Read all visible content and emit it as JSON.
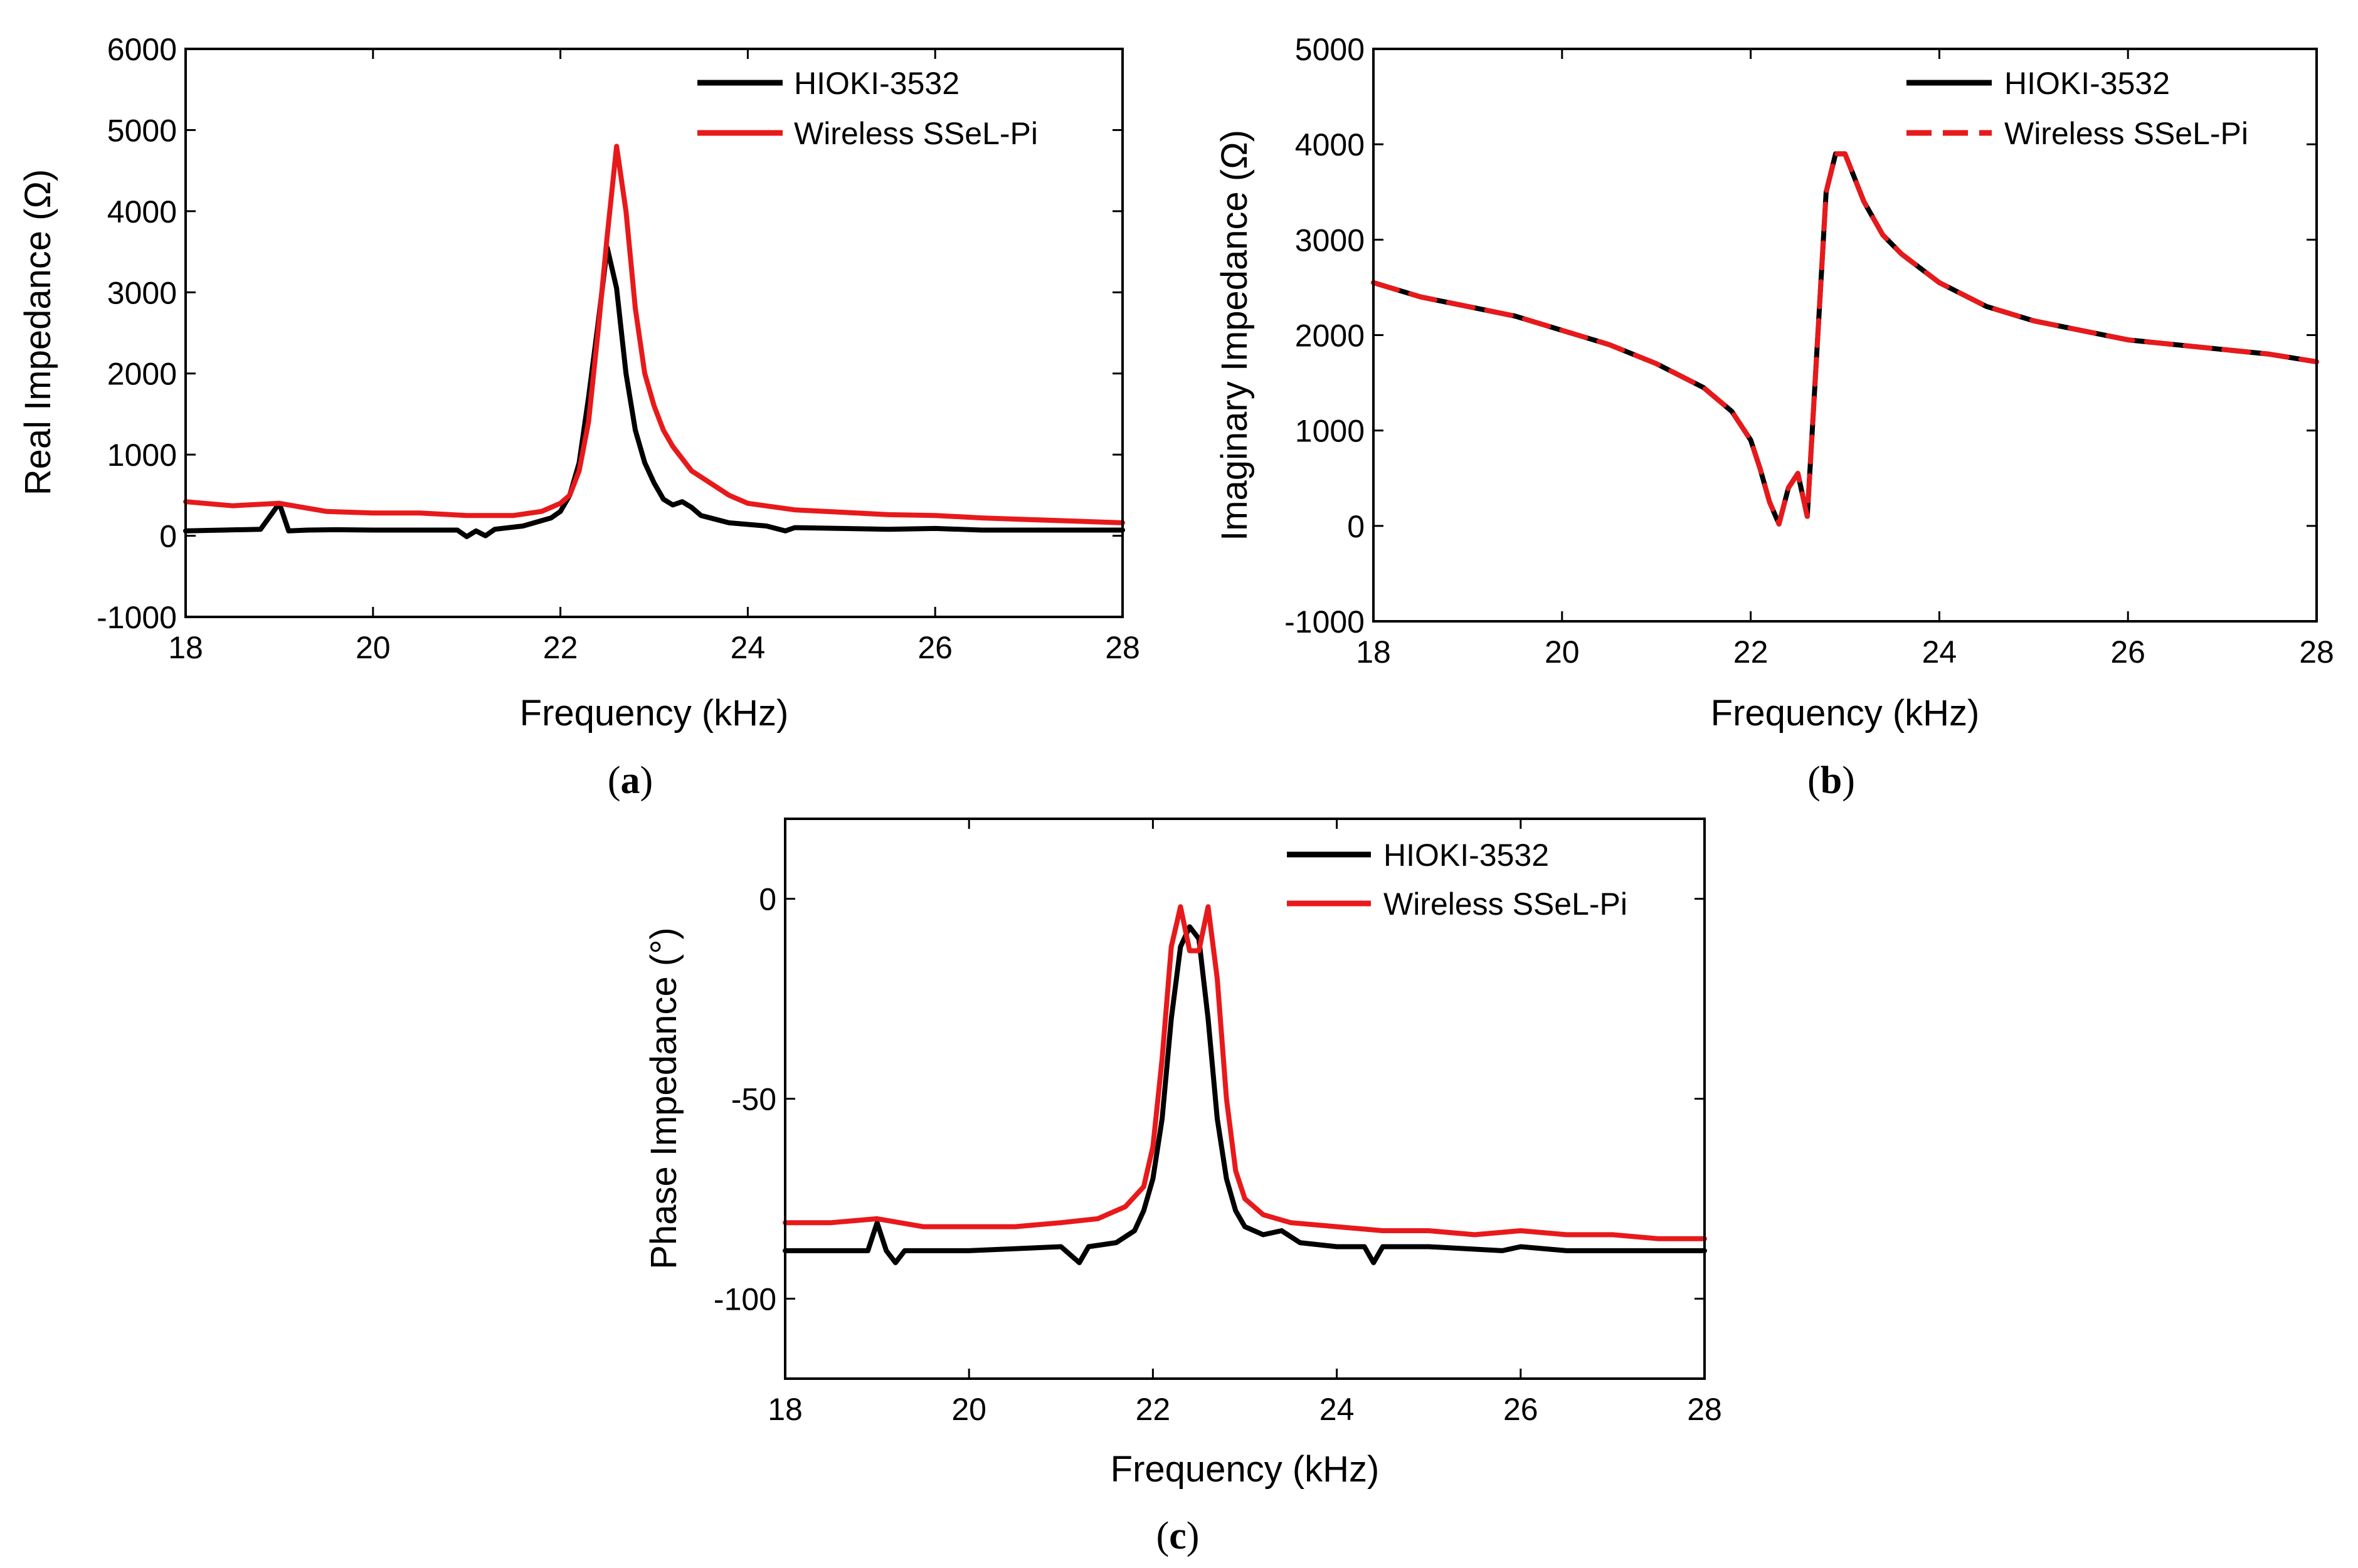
{
  "chart_data": [
    {
      "type": "line",
      "panel_label": "a",
      "xlabel": "Frequency (kHz)",
      "ylabel": "Real Impedance (Ω)",
      "xlim": [
        18,
        28
      ],
      "ylim": [
        -1000,
        6000
      ],
      "xticks": [
        18,
        20,
        22,
        24,
        26,
        28
      ],
      "yticks": [
        -1000,
        0,
        1000,
        2000,
        3000,
        4000,
        5000,
        6000
      ],
      "legend_position": "top-right",
      "series": [
        {
          "name": "HIOKI-3532",
          "color": "#000000",
          "dash": "solid",
          "x": [
            18,
            18.4,
            18.8,
            19.0,
            19.1,
            19.3,
            19.6,
            20.0,
            20.5,
            20.9,
            21.0,
            21.1,
            21.2,
            21.3,
            21.6,
            21.9,
            22.0,
            22.1,
            22.2,
            22.3,
            22.4,
            22.5,
            22.6,
            22.7,
            22.8,
            22.9,
            23.0,
            23.1,
            23.2,
            23.3,
            23.4,
            23.5,
            23.8,
            24.2,
            24.4,
            24.5,
            25.0,
            25.5,
            26.0,
            26.5,
            27.0,
            27.5,
            28.0
          ],
          "y": [
            60,
            70,
            80,
            400,
            60,
            70,
            75,
            70,
            70,
            70,
            -10,
            60,
            0,
            80,
            120,
            220,
            300,
            500,
            900,
            1700,
            2600,
            3550,
            3050,
            2000,
            1300,
            900,
            650,
            450,
            380,
            420,
            350,
            250,
            160,
            120,
            60,
            100,
            90,
            80,
            90,
            70,
            70,
            70,
            70
          ]
        },
        {
          "name": "Wireless SSeL-Pi",
          "color": "#e8191b",
          "dash": "solid",
          "x": [
            18,
            18.5,
            19.0,
            19.5,
            20.0,
            20.5,
            21.0,
            21.5,
            21.8,
            22.0,
            22.1,
            22.2,
            22.3,
            22.4,
            22.5,
            22.6,
            22.7,
            22.8,
            22.9,
            23.0,
            23.1,
            23.2,
            23.4,
            23.6,
            23.8,
            24.0,
            24.5,
            25.0,
            25.5,
            26.0,
            26.5,
            27.0,
            27.5,
            28.0
          ],
          "y": [
            420,
            370,
            400,
            300,
            280,
            280,
            250,
            250,
            300,
            400,
            500,
            800,
            1400,
            2500,
            3700,
            4800,
            4000,
            2800,
            2000,
            1600,
            1300,
            1100,
            800,
            650,
            500,
            400,
            320,
            290,
            260,
            250,
            220,
            200,
            180,
            160
          ]
        }
      ]
    },
    {
      "type": "line",
      "panel_label": "b",
      "xlabel": "Frequency (kHz)",
      "ylabel": "Imaginary Impedance (Ω)",
      "xlim": [
        18,
        28
      ],
      "ylim": [
        -1000,
        5000
      ],
      "xticks": [
        18,
        20,
        22,
        24,
        26,
        28
      ],
      "yticks": [
        -1000,
        0,
        1000,
        2000,
        3000,
        4000,
        5000
      ],
      "legend_position": "top-right",
      "series": [
        {
          "name": "HIOKI-3532",
          "color": "#000000",
          "dash": "solid",
          "x": [
            18,
            18.5,
            19.0,
            19.5,
            20.0,
            20.5,
            21.0,
            21.5,
            21.8,
            22.0,
            22.1,
            22.2,
            22.3,
            22.4,
            22.5,
            22.6,
            22.7,
            22.8,
            22.9,
            23.0,
            23.2,
            23.4,
            23.6,
            24.0,
            24.5,
            25.0,
            25.5,
            26.0,
            26.5,
            27.0,
            27.5,
            28.0
          ],
          "y": [
            2550,
            2400,
            2300,
            2200,
            2050,
            1900,
            1700,
            1450,
            1200,
            900,
            600,
            250,
            20,
            400,
            550,
            100,
            1800,
            3500,
            3900,
            3900,
            3400,
            3050,
            2850,
            2550,
            2300,
            2150,
            2050,
            1950,
            1900,
            1850,
            1800,
            1720
          ]
        },
        {
          "name": "Wireless SSeL-Pi",
          "color": "#e8191b",
          "dash": "dashed",
          "x": [
            18,
            18.5,
            19.0,
            19.5,
            20.0,
            20.5,
            21.0,
            21.5,
            21.8,
            22.0,
            22.1,
            22.2,
            22.3,
            22.4,
            22.5,
            22.6,
            22.7,
            22.8,
            22.9,
            23.0,
            23.2,
            23.4,
            23.6,
            24.0,
            24.5,
            25.0,
            25.5,
            26.0,
            26.5,
            27.0,
            27.5,
            28.0
          ],
          "y": [
            2550,
            2400,
            2300,
            2200,
            2050,
            1900,
            1700,
            1450,
            1200,
            900,
            600,
            250,
            20,
            400,
            550,
            100,
            1800,
            3500,
            3900,
            3900,
            3400,
            3050,
            2850,
            2550,
            2300,
            2150,
            2050,
            1950,
            1900,
            1850,
            1800,
            1720
          ]
        }
      ]
    },
    {
      "type": "line",
      "panel_label": "c",
      "xlabel": "Frequency (kHz)",
      "ylabel": "Phase Impedance (°)",
      "xlim": [
        18,
        28
      ],
      "ylim": [
        -120,
        20
      ],
      "xticks": [
        18,
        20,
        22,
        24,
        26,
        28
      ],
      "yticks": [
        -100,
        -50,
        0
      ],
      "legend_position": "top-right",
      "series": [
        {
          "name": "HIOKI-3532",
          "color": "#000000",
          "dash": "solid",
          "x": [
            18,
            18.5,
            18.9,
            19.0,
            19.1,
            19.2,
            19.3,
            20.0,
            21.0,
            21.1,
            21.2,
            21.3,
            21.6,
            21.8,
            21.9,
            22.0,
            22.1,
            22.2,
            22.3,
            22.4,
            22.5,
            22.6,
            22.7,
            22.8,
            22.9,
            23.0,
            23.2,
            23.4,
            23.6,
            24.0,
            24.3,
            24.4,
            24.5,
            25.0,
            25.8,
            26.0,
            26.5,
            27.0,
            28.0
          ],
          "y": [
            -88,
            -88,
            -88,
            -81,
            -88,
            -91,
            -88,
            -88,
            -87,
            -89,
            -91,
            -87,
            -86,
            -83,
            -78,
            -70,
            -55,
            -30,
            -12,
            -7,
            -10,
            -30,
            -55,
            -70,
            -78,
            -82,
            -84,
            -83,
            -86,
            -87,
            -87,
            -91,
            -87,
            -87,
            -88,
            -87,
            -88,
            -88,
            -88
          ]
        },
        {
          "name": "Wireless SSeL-Pi",
          "color": "#e8191b",
          "dash": "solid",
          "x": [
            18,
            18.5,
            19.0,
            19.5,
            20.0,
            20.5,
            21.0,
            21.4,
            21.7,
            21.9,
            22.0,
            22.1,
            22.2,
            22.3,
            22.4,
            22.5,
            22.6,
            22.7,
            22.8,
            22.9,
            23.0,
            23.2,
            23.5,
            24.0,
            24.5,
            25.0,
            25.5,
            26.0,
            26.5,
            27.0,
            27.5,
            28.0
          ],
          "y": [
            -81,
            -81,
            -80,
            -82,
            -82,
            -82,
            -81,
            -80,
            -77,
            -72,
            -62,
            -40,
            -12,
            -2,
            -13,
            -13,
            -2,
            -20,
            -50,
            -68,
            -75,
            -79,
            -81,
            -82,
            -83,
            -83,
            -84,
            -83,
            -84,
            -84,
            -85,
            -85
          ]
        }
      ]
    }
  ]
}
